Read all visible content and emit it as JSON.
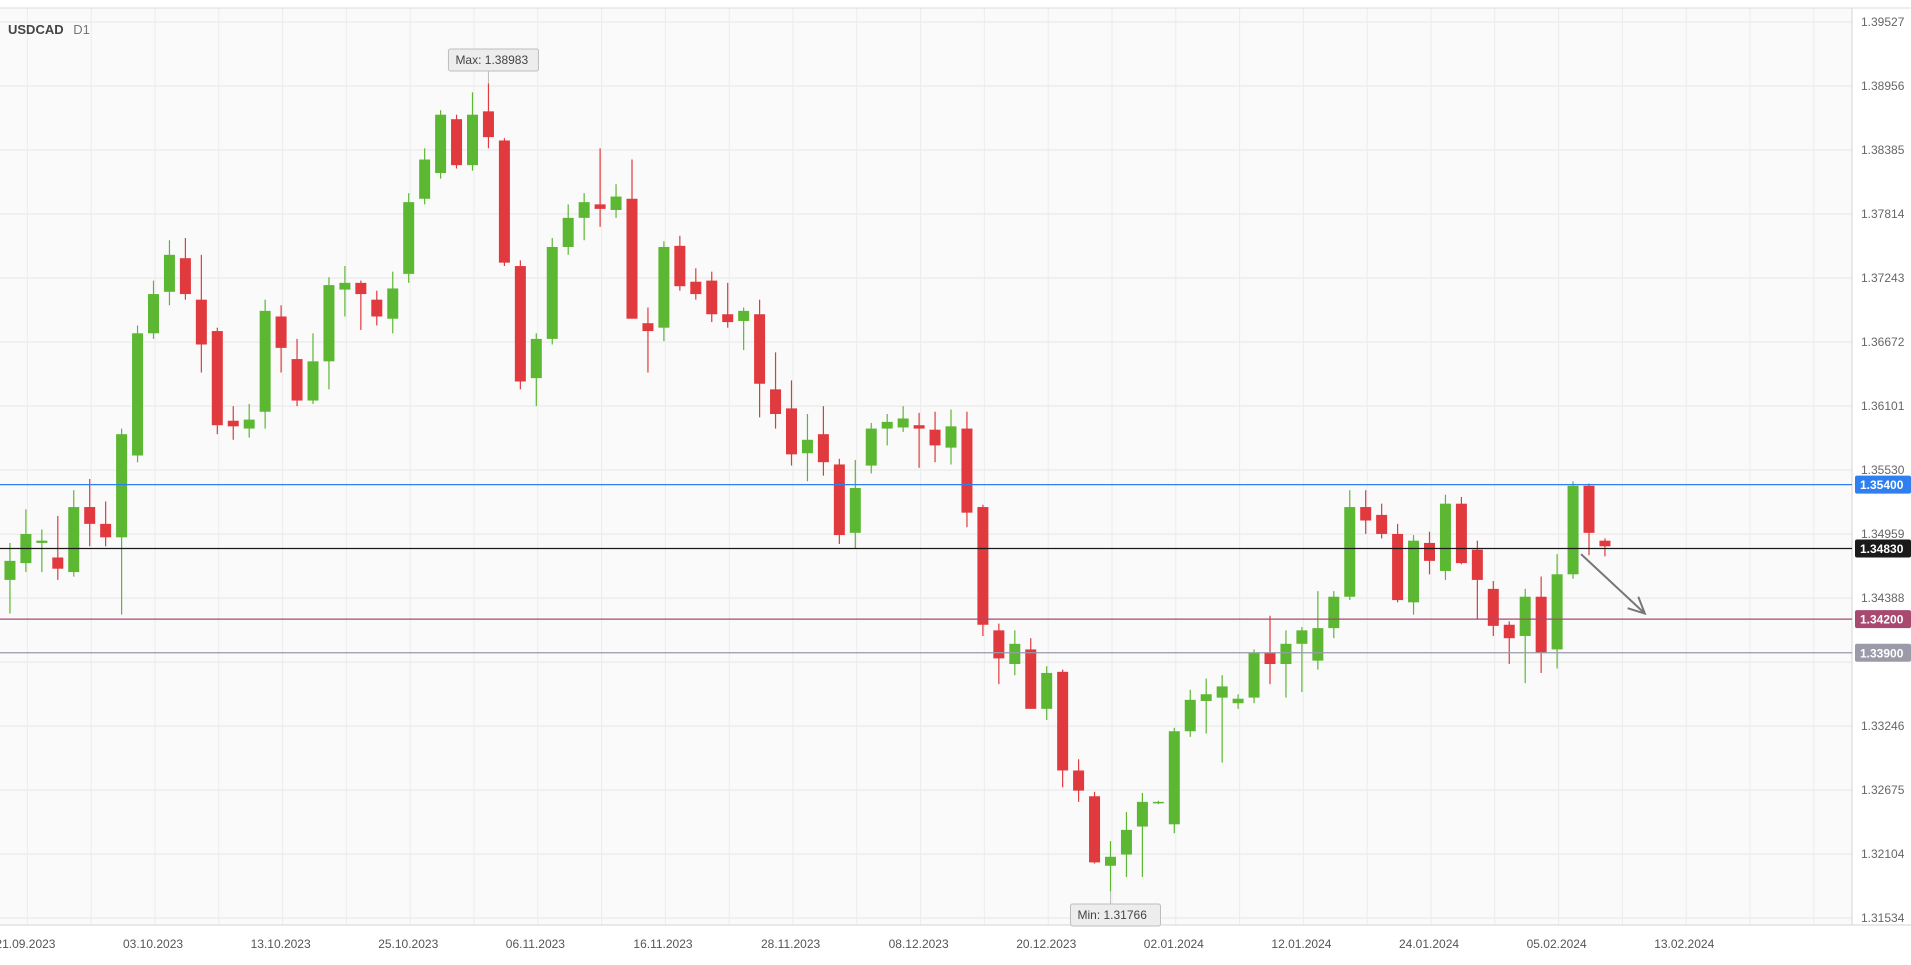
{
  "header": {
    "symbol": "USDCAD",
    "timeframe": "D1"
  },
  "chart_data": {
    "type": "candlestick",
    "title": "USDCAD D1",
    "ylim": [
      1.31534,
      1.39527
    ],
    "y_ticks": [
      1.39527,
      1.38956,
      1.38385,
      1.37814,
      1.37243,
      1.36672,
      1.36101,
      1.3553,
      1.34959,
      1.34388,
      1.33817,
      1.33246,
      1.32675,
      1.32104,
      1.31534
    ],
    "y_tick_labels": [
      "1.39527",
      "1.38956",
      "1.38385",
      "1.37814",
      "1.37243",
      "1.36672",
      "1.36101",
      "1.35530",
      "1.34959",
      "1.34388",
      "",
      "1.33246",
      "1.32675",
      "1.32104",
      "1.31534"
    ],
    "x_tick_labels": [
      {
        "label": "21.09.2023",
        "index": 2
      },
      {
        "label": "03.10.2023",
        "index": 10
      },
      {
        "label": "13.10.2023",
        "index": 18
      },
      {
        "label": "25.10.2023",
        "index": 26
      },
      {
        "label": "06.11.2023",
        "index": 34
      },
      {
        "label": "16.11.2023",
        "index": 42
      },
      {
        "label": "28.11.2023",
        "index": 50
      },
      {
        "label": "08.12.2023",
        "index": 58
      },
      {
        "label": "20.12.2023",
        "index": 66
      },
      {
        "label": "02.01.2024",
        "index": 74
      },
      {
        "label": "12.01.2024",
        "index": 82
      },
      {
        "label": "24.01.2024",
        "index": 90
      },
      {
        "label": "05.02.2024",
        "index": 98
      },
      {
        "label": "13.02.2024",
        "index": 106
      }
    ],
    "candles": [
      [
        1.3492,
        1.3495,
        1.3389,
        1.3455
      ],
      [
        1.3455,
        1.3488,
        1.3425,
        1.3472
      ],
      [
        1.347,
        1.3518,
        1.3462,
        1.3496
      ],
      [
        1.3488,
        1.35,
        1.3462,
        1.349
      ],
      [
        1.3475,
        1.3512,
        1.3455,
        1.3465
      ],
      [
        1.3462,
        1.3535,
        1.3458,
        1.352
      ],
      [
        1.352,
        1.3545,
        1.3485,
        1.3505
      ],
      [
        1.3505,
        1.3525,
        1.3485,
        1.3493
      ],
      [
        1.3493,
        1.359,
        1.3424,
        1.3585
      ],
      [
        1.3566,
        1.3682,
        1.356,
        1.3675
      ],
      [
        1.3675,
        1.3722,
        1.367,
        1.371
      ],
      [
        1.3712,
        1.3758,
        1.37,
        1.3745
      ],
      [
        1.3742,
        1.376,
        1.3705,
        1.371
      ],
      [
        1.3705,
        1.3745,
        1.364,
        1.3665
      ],
      [
        1.3677,
        1.368,
        1.3585,
        1.3593
      ],
      [
        1.3597,
        1.361,
        1.358,
        1.3592
      ],
      [
        1.359,
        1.3612,
        1.3582,
        1.3598
      ],
      [
        1.3605,
        1.3705,
        1.359,
        1.3695
      ],
      [
        1.369,
        1.37,
        1.364,
        1.3662
      ],
      [
        1.3652,
        1.367,
        1.361,
        1.3615
      ],
      [
        1.3615,
        1.3675,
        1.3612,
        1.365
      ],
      [
        1.365,
        1.3725,
        1.3625,
        1.3718
      ],
      [
        1.3714,
        1.3735,
        1.369,
        1.372
      ],
      [
        1.372,
        1.3722,
        1.3678,
        1.371
      ],
      [
        1.3705,
        1.3713,
        1.3682,
        1.369
      ],
      [
        1.3688,
        1.373,
        1.3675,
        1.3715
      ],
      [
        1.3728,
        1.38,
        1.372,
        1.3792
      ],
      [
        1.3795,
        1.384,
        1.379,
        1.383
      ],
      [
        1.3818,
        1.3874,
        1.3813,
        1.387
      ],
      [
        1.3866,
        1.387,
        1.3822,
        1.3825
      ],
      [
        1.3825,
        1.389,
        1.382,
        1.387
      ],
      [
        1.3873,
        1.3898,
        1.384,
        1.385
      ],
      [
        1.3847,
        1.3849,
        1.3735,
        1.3738
      ],
      [
        1.3735,
        1.374,
        1.3625,
        1.3632
      ],
      [
        1.3635,
        1.3675,
        1.361,
        1.367
      ],
      [
        1.367,
        1.376,
        1.3665,
        1.3752
      ],
      [
        1.3752,
        1.379,
        1.3745,
        1.3778
      ],
      [
        1.3778,
        1.38,
        1.3758,
        1.3792
      ],
      [
        1.379,
        1.384,
        1.377,
        1.3786
      ],
      [
        1.3785,
        1.3808,
        1.3778,
        1.3797
      ],
      [
        1.3795,
        1.383,
        1.369,
        1.3688
      ],
      [
        1.3684,
        1.3698,
        1.364,
        1.3677
      ],
      [
        1.368,
        1.3757,
        1.3668,
        1.3752
      ],
      [
        1.3753,
        1.3762,
        1.3713,
        1.3717
      ],
      [
        1.3721,
        1.3733,
        1.3705,
        1.371
      ],
      [
        1.3722,
        1.373,
        1.3685,
        1.3692
      ],
      [
        1.3692,
        1.372,
        1.368,
        1.3685
      ],
      [
        1.3686,
        1.3698,
        1.366,
        1.3695
      ],
      [
        1.3692,
        1.3705,
        1.36,
        1.363
      ],
      [
        1.3625,
        1.3658,
        1.359,
        1.3603
      ],
      [
        1.3608,
        1.3633,
        1.3557,
        1.3567
      ],
      [
        1.3568,
        1.3603,
        1.3543,
        1.358
      ],
      [
        1.3585,
        1.361,
        1.3548,
        1.356
      ],
      [
        1.3558,
        1.3563,
        1.3487,
        1.3495
      ],
      [
        1.3497,
        1.3562,
        1.3483,
        1.3537
      ],
      [
        1.3557,
        1.3595,
        1.355,
        1.359
      ],
      [
        1.359,
        1.3603,
        1.3575,
        1.3596
      ],
      [
        1.3591,
        1.361,
        1.3587,
        1.3599
      ],
      [
        1.3593,
        1.3604,
        1.3555,
        1.359
      ],
      [
        1.3589,
        1.3605,
        1.356,
        1.3575
      ],
      [
        1.3573,
        1.3607,
        1.3558,
        1.3592
      ],
      [
        1.359,
        1.3605,
        1.3502,
        1.3515
      ],
      [
        1.352,
        1.3522,
        1.3405,
        1.3415
      ],
      [
        1.341,
        1.3416,
        1.3362,
        1.3385
      ],
      [
        1.338,
        1.341,
        1.337,
        1.3398
      ],
      [
        1.3393,
        1.3403,
        1.334,
        1.334
      ],
      [
        1.334,
        1.3378,
        1.333,
        1.3372
      ],
      [
        1.3373,
        1.3375,
        1.327,
        1.3285
      ],
      [
        1.3285,
        1.3295,
        1.3257,
        1.3267
      ],
      [
        1.3262,
        1.3266,
        1.3202,
        1.3203
      ],
      [
        1.32,
        1.3222,
        1.3177,
        1.3208
      ],
      [
        1.321,
        1.3248,
        1.319,
        1.3232
      ],
      [
        1.3235,
        1.3265,
        1.319,
        1.3257
      ],
      [
        1.3256,
        1.3258,
        1.3255,
        1.3257
      ],
      [
        1.3237,
        1.3323,
        1.3229,
        1.332
      ],
      [
        1.332,
        1.3357,
        1.3315,
        1.3348
      ],
      [
        1.3347,
        1.3367,
        1.3318,
        1.3353
      ],
      [
        1.335,
        1.337,
        1.3292,
        1.336
      ],
      [
        1.3345,
        1.3353,
        1.334,
        1.3349
      ],
      [
        1.335,
        1.3393,
        1.3345,
        1.339
      ],
      [
        1.339,
        1.3423,
        1.3362,
        1.338
      ],
      [
        1.338,
        1.341,
        1.335,
        1.3398
      ],
      [
        1.3398,
        1.3413,
        1.3355,
        1.341
      ],
      [
        1.3383,
        1.3445,
        1.3375,
        1.3412
      ],
      [
        1.3412,
        1.3445,
        1.3403,
        1.344
      ],
      [
        1.344,
        1.3535,
        1.3437,
        1.352
      ],
      [
        1.352,
        1.3535,
        1.3496,
        1.3508
      ],
      [
        1.3513,
        1.3523,
        1.3492,
        1.3496
      ],
      [
        1.3496,
        1.3505,
        1.3435,
        1.3437
      ],
      [
        1.3435,
        1.3495,
        1.3424,
        1.349
      ],
      [
        1.3488,
        1.3498,
        1.346,
        1.3472
      ],
      [
        1.3463,
        1.3531,
        1.3455,
        1.3523
      ],
      [
        1.3523,
        1.3529,
        1.3469,
        1.347
      ],
      [
        1.3482,
        1.349,
        1.342,
        1.3455
      ],
      [
        1.3447,
        1.3454,
        1.3405,
        1.3414
      ],
      [
        1.3415,
        1.3418,
        1.338,
        1.3403
      ],
      [
        1.3405,
        1.3447,
        1.3363,
        1.344
      ],
      [
        1.344,
        1.3458,
        1.3372,
        1.339
      ],
      [
        1.3393,
        1.3478,
        1.3376,
        1.346
      ],
      [
        1.346,
        1.3543,
        1.3456,
        1.3539
      ],
      [
        1.3539,
        1.3541,
        1.3477,
        1.3497
      ],
      [
        1.349,
        1.3492,
        1.3476,
        1.3485
      ]
    ],
    "bull_color": "#5cb832",
    "bear_color": "#e0393e",
    "price_axis_tags": [
      {
        "value": 1.354,
        "label": "1.35400",
        "color": "#2f7ff0"
      },
      {
        "value": 1.3483,
        "label": "1.34830",
        "color": "#1a1a1a"
      },
      {
        "value": 1.342,
        "label": "1.34200",
        "color": "#a84a70"
      },
      {
        "value": 1.339,
        "label": "1.33900",
        "color": "#9a9aa8"
      }
    ],
    "annotations": [
      {
        "label": "Max: 1.38983",
        "value": 1.38983
      },
      {
        "label": "Min: 1.31766",
        "value": 1.31766
      }
    ],
    "arrow": {
      "from_index": 99.5,
      "from_value": 1.3478,
      "to_index": 103.5,
      "to_value": 1.3425,
      "color": "#777777"
    }
  }
}
